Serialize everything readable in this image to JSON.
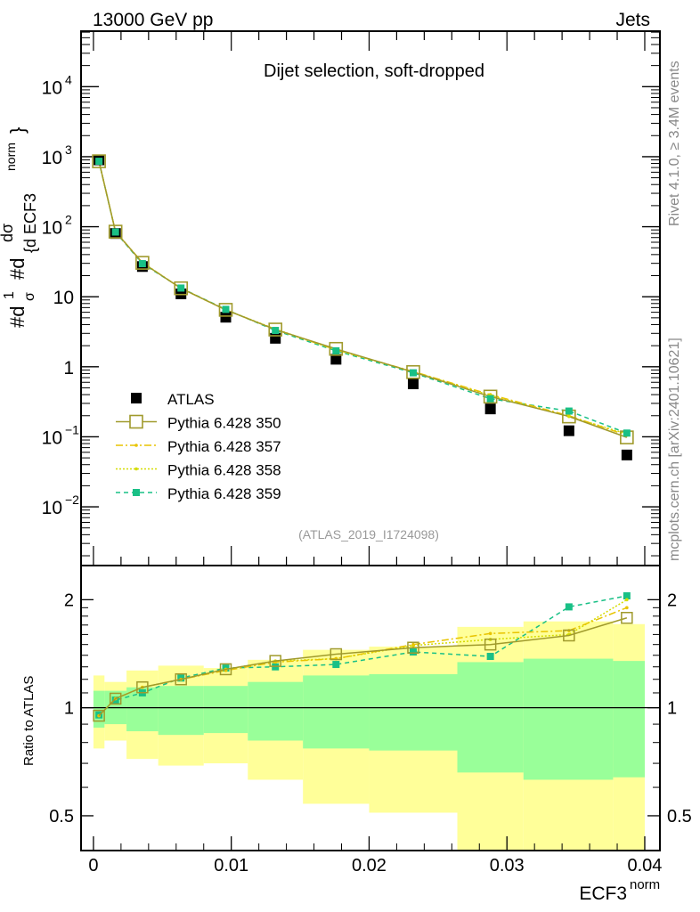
{
  "chart_data": [
    {
      "type": "line",
      "panel": "main",
      "title": "Dijet selection, soft-dropped",
      "header_left": "13000 GeV pp",
      "header_right": "Jets",
      "analysis_label": "(ATLAS_2019_I1724098)",
      "side_label_top": "Rivet 4.1.0, ≥ 3.4M events",
      "side_label_bottom": "mcplots.cern.ch [arXiv:2401.10621]",
      "ylabel_parts": [
        "#d",
        "1",
        "σ",
        "#d",
        "dσ",
        "{d ECF3",
        "norm",
        "}"
      ],
      "yscale": "log",
      "ylim": [
        0.00145,
        62000
      ],
      "xlim": [
        -0.0009,
        0.0411
      ],
      "yticks": [
        {
          "value": 0.01,
          "base": "10",
          "exp": "−2"
        },
        {
          "value": 0.1,
          "base": "10",
          "exp": "−1"
        },
        {
          "value": 1,
          "base": "1",
          "exp": ""
        },
        {
          "value": 10,
          "base": "10",
          "exp": ""
        },
        {
          "value": 100,
          "base": "10",
          "exp": "2"
        },
        {
          "value": 1000,
          "base": "10",
          "exp": "3"
        },
        {
          "value": 10000,
          "base": "10",
          "exp": "4"
        }
      ],
      "legend_position": "bottom-left",
      "x": [
        0.0004,
        0.0016,
        0.00355,
        0.00635,
        0.0096,
        0.0132,
        0.0176,
        0.0232,
        0.0288,
        0.0345,
        0.0387
      ],
      "series": [
        {
          "name": "ATLAS",
          "color": "#000000",
          "style": "marker",
          "values": [
            900,
            80,
            27,
            11,
            5.1,
            2.55,
            1.28,
            0.57,
            0.25,
            0.122,
            0.055
          ]
        },
        {
          "name": "Pythia 6.428 350",
          "color": "#a09a2c",
          "style": "solid-open-square",
          "values": [
            860,
            85,
            30.5,
            13.2,
            6.5,
            3.4,
            1.8,
            0.84,
            0.375,
            0.195,
            0.098
          ]
        },
        {
          "name": "Pythia 6.428 357",
          "color": "#e8c400",
          "style": "dashdot",
          "values": [
            860,
            85,
            30.8,
            13.2,
            6.5,
            3.4,
            1.75,
            0.855,
            0.4,
            0.2,
            0.105
          ]
        },
        {
          "name": "Pythia 6.428 358",
          "color": "#d4dc00",
          "style": "dotted",
          "values": [
            860,
            85,
            30.8,
            13.2,
            6.5,
            3.45,
            1.75,
            0.85,
            0.39,
            0.195,
            0.11
          ]
        },
        {
          "name": "Pythia 6.428 359",
          "color": "#19c086",
          "style": "dashed-square",
          "values": [
            860,
            84,
            29.7,
            13.3,
            6.6,
            3.3,
            1.69,
            0.82,
            0.35,
            0.233,
            0.113
          ]
        }
      ]
    },
    {
      "type": "line",
      "panel": "ratio",
      "ylabel": "Ratio to ATLAS",
      "xlabel_base": "ECF3",
      "xlabel_sup": "norm",
      "yscale": "log",
      "ylim": [
        0.4,
        2.49
      ],
      "xlim": [
        -0.0009,
        0.0411
      ],
      "xticks": [
        {
          "value": 0,
          "label": "0"
        },
        {
          "value": 0.01,
          "label": "0.01"
        },
        {
          "value": 0.02,
          "label": "0.02"
        },
        {
          "value": 0.03,
          "label": "0.03"
        },
        {
          "value": 0.04,
          "label": "0.04"
        }
      ],
      "yticks": [
        {
          "value": 0.5,
          "label": "0.5"
        },
        {
          "value": 1,
          "label": "1"
        },
        {
          "value": 2,
          "label": "2"
        }
      ],
      "bin_edges": [
        0,
        0.0008,
        0.0024,
        0.0047,
        0.008,
        0.0112,
        0.0152,
        0.02,
        0.0264,
        0.0312,
        0.0377,
        0.04
      ],
      "band_total": {
        "color": "#ffff99",
        "upper": [
          1.23,
          1.18,
          1.27,
          1.31,
          1.29,
          1.36,
          1.45,
          1.48,
          1.68,
          1.74,
          1.71
        ],
        "lower": [
          0.77,
          0.81,
          0.72,
          0.69,
          0.7,
          0.63,
          0.54,
          0.51,
          0.35,
          0.35,
          0.35
        ]
      },
      "band_stat": {
        "color": "#99ff99",
        "upper": [
          1.115,
          1.115,
          1.14,
          1.15,
          1.15,
          1.18,
          1.23,
          1.24,
          1.34,
          1.37,
          1.35
        ],
        "lower": [
          0.88,
          0.9,
          0.86,
          0.84,
          0.85,
          0.81,
          0.77,
          0.76,
          0.66,
          0.63,
          0.64
        ]
      },
      "x": [
        0.0004,
        0.0016,
        0.00355,
        0.00635,
        0.0096,
        0.0132,
        0.0176,
        0.0232,
        0.0288,
        0.0345,
        0.0387
      ],
      "series": [
        {
          "name": "Pythia 6.428 350",
          "color": "#a09a2c",
          "style": "solid-open-square",
          "values": [
            0.95,
            1.06,
            1.14,
            1.2,
            1.28,
            1.35,
            1.41,
            1.47,
            1.5,
            1.59,
            1.78
          ]
        },
        {
          "name": "Pythia 6.428 357",
          "color": "#e8c400",
          "style": "dashdot",
          "values": [
            0.95,
            1.06,
            1.14,
            1.2,
            1.27,
            1.34,
            1.37,
            1.5,
            1.61,
            1.64,
            1.9
          ]
        },
        {
          "name": "Pythia 6.428 358",
          "color": "#d4dc00",
          "style": "dotted",
          "values": [
            0.95,
            1.06,
            1.14,
            1.2,
            1.28,
            1.35,
            1.37,
            1.49,
            1.55,
            1.6,
            2.0
          ]
        },
        {
          "name": "Pythia 6.428 359",
          "color": "#19c086",
          "style": "dashed-square",
          "values": [
            0.955,
            1.05,
            1.1,
            1.21,
            1.29,
            1.3,
            1.32,
            1.43,
            1.39,
            1.91,
            2.05
          ]
        }
      ]
    }
  ]
}
